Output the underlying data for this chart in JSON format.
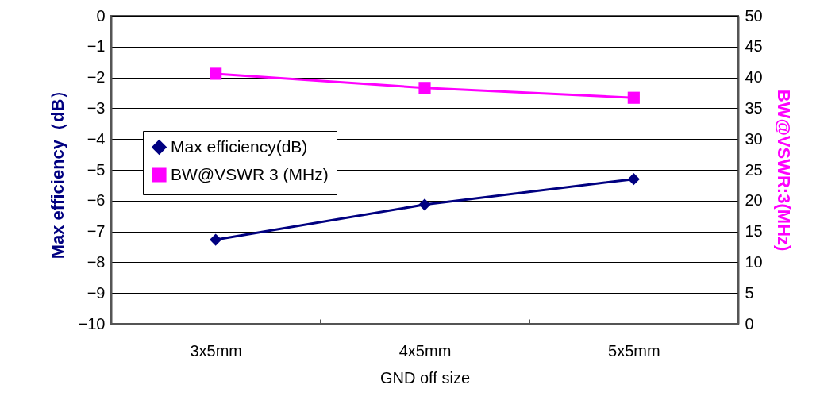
{
  "chart_data": {
    "type": "line",
    "categories": [
      "3x5mm",
      "4x5mm",
      "5x5mm"
    ],
    "xlabel": "GND off size",
    "ylabel": "Max efficiency（dB）",
    "y2label": "BW@VSWR:3(MHz)",
    "ylim": [
      -10,
      0
    ],
    "yticks": [
      -10,
      -9,
      -8,
      -7,
      -6,
      -5,
      -4,
      -3,
      -2,
      -1,
      0
    ],
    "y2lim": [
      0,
      50
    ],
    "y2ticks": [
      0,
      5,
      10,
      15,
      20,
      25,
      30,
      35,
      40,
      45,
      50
    ],
    "grid": "y",
    "legend": "left",
    "line_style": "solid",
    "series": [
      {
        "name": "Max efficiency(dB)",
        "color": "#000080",
        "marker": "diamond",
        "values": [
          -7.27,
          -6.13,
          -5.3
        ]
      },
      {
        "name": "BW@VSWR 3 (MHz)",
        "color": "#ff00ff",
        "marker": "square",
        "axis": "y2",
        "values": [
          40.6,
          38.3,
          36.7
        ]
      }
    ]
  }
}
